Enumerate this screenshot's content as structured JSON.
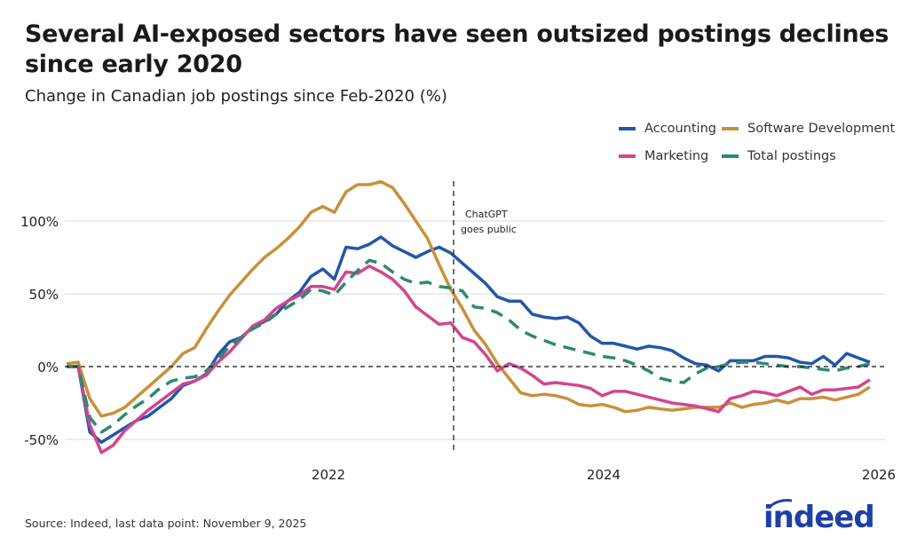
{
  "header": {
    "title": "Several AI-exposed sectors have seen outsized postings declines since early 2020",
    "subtitle": "Change in Canadian job postings since Feb-2020 (%)"
  },
  "footer": {
    "source": "Source: Indeed, last data point: November 9, 2025",
    "logo": "indeed"
  },
  "chart_data": {
    "type": "line",
    "title": "Several AI-exposed sectors have seen outsized postings declines since early 2020",
    "subtitle": "Change in Canadian job postings since Feb-2020 (%)",
    "x_start": "2020-02",
    "x_end": "2025-11",
    "x_frequency": "monthly",
    "x_ticks": [
      "2022",
      "2024",
      "2026"
    ],
    "y_ticks": [
      "-50%",
      "0%",
      "50%",
      "100%"
    ],
    "ylim": [
      -60,
      130
    ],
    "grid": "horizontal",
    "legend_placement": "top-right",
    "annotation": {
      "date": "2022-11-30",
      "line1": "ChatGPT",
      "line2": "goes public"
    },
    "series": [
      {
        "name": "Accounting",
        "color": "#2257a8",
        "dash": false,
        "values": [
          0,
          0,
          -45,
          -52,
          -47,
          -42,
          -37,
          -34,
          -28,
          -22,
          -13,
          -10,
          -5,
          8,
          17,
          20,
          27,
          31,
          36,
          45,
          51,
          62,
          67,
          60,
          82,
          81,
          84,
          89,
          83,
          79,
          75,
          79,
          82,
          78,
          71,
          64,
          57,
          48,
          45,
          45,
          36,
          34,
          33,
          34,
          30,
          21,
          16,
          16,
          14,
          12,
          14,
          13,
          11,
          6,
          2,
          1,
          -3,
          4,
          4,
          4,
          7,
          7,
          6,
          3,
          2,
          7,
          1,
          9,
          6,
          3
        ]
      },
      {
        "name": "Software Development",
        "color": "#c9903a",
        "dash": false,
        "values": [
          2,
          3,
          -22,
          -34,
          -32,
          -28,
          -21,
          -14,
          -7,
          0,
          9,
          13,
          26,
          38,
          49,
          58,
          67,
          75,
          81,
          88,
          96,
          106,
          110,
          106,
          120,
          125,
          125,
          127,
          123,
          112,
          100,
          88,
          70,
          53,
          40,
          25,
          15,
          2,
          -8,
          -18,
          -20,
          -19,
          -20,
          -22,
          -26,
          -27,
          -26,
          -28,
          -31,
          -30,
          -28,
          -29,
          -30,
          -29,
          -28,
          -28,
          -28,
          -25,
          -28,
          -26,
          -25,
          -23,
          -25,
          -22,
          -22,
          -21,
          -23,
          -21,
          -19,
          -14
        ]
      },
      {
        "name": "Marketing",
        "color": "#d0468f",
        "dash": false,
        "values": [
          0,
          0,
          -40,
          -59,
          -54,
          -44,
          -37,
          -30,
          -24,
          -18,
          -12,
          -10,
          -6,
          3,
          10,
          19,
          28,
          32,
          40,
          45,
          49,
          55,
          55,
          53,
          65,
          64,
          69,
          65,
          60,
          52,
          41,
          35,
          29,
          30,
          20,
          17,
          8,
          -3,
          2,
          -1,
          -6,
          -12,
          -11,
          -12,
          -13,
          -15,
          -20,
          -17,
          -17,
          -19,
          -21,
          -23,
          -25,
          -26,
          -27,
          -29,
          -31,
          -22,
          -20,
          -17,
          -18,
          -20,
          -17,
          -14,
          -19,
          -16,
          -16,
          -15,
          -14,
          -9
        ]
      },
      {
        "name": "Total postings",
        "color": "#2e8872",
        "dash": true,
        "values": [
          0,
          0,
          -35,
          -45,
          -40,
          -33,
          -27,
          -22,
          -15,
          -10,
          -8,
          -7,
          -3,
          5,
          14,
          20,
          26,
          30,
          36,
          41,
          46,
          53,
          52,
          49,
          58,
          66,
          73,
          71,
          65,
          60,
          57,
          58,
          55,
          54,
          52,
          41,
          40,
          37,
          32,
          25,
          21,
          18,
          15,
          13,
          11,
          9,
          7,
          6,
          4,
          1,
          -3,
          -8,
          -10,
          -11,
          -5,
          -1,
          0,
          2,
          3,
          3,
          2,
          1,
          0,
          0,
          -1,
          -2,
          -3,
          -1,
          0,
          2
        ]
      }
    ]
  }
}
